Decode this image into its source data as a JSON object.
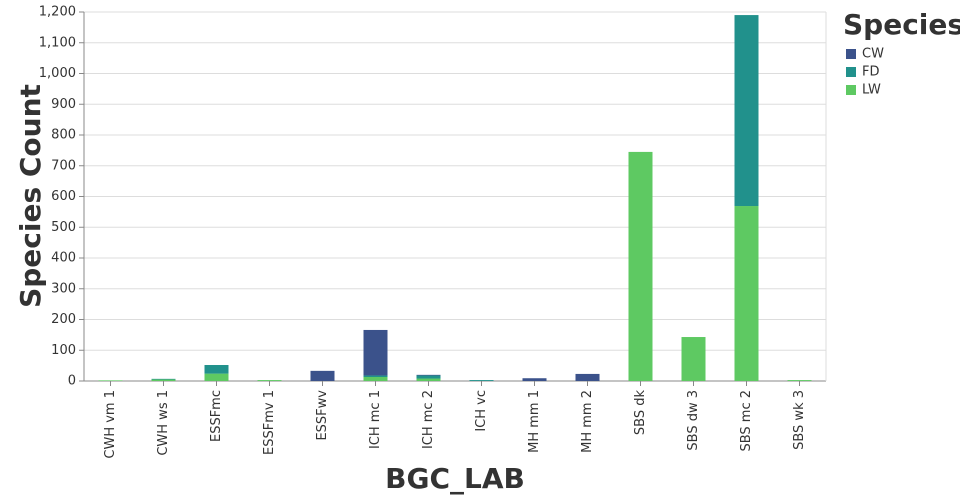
{
  "chart_data": {
    "type": "stacked-bar",
    "x_label": "BGC_LAB",
    "y_label": "Species Count",
    "legend_title": "Species",
    "categories": [
      "CWH vm 1",
      "CWH ws 1",
      "ESSFmc",
      "ESSFmv 1",
      "ESSFwv",
      "ICH mc 1",
      "ICH mc 2",
      "ICH vc",
      "MH mm 1",
      "MH mm 2",
      "SBS dk",
      "SBS dw 3",
      "SBS mc 2",
      "SBS wk 3"
    ],
    "series": [
      {
        "name": "CW",
        "color": "#3b528b",
        "values": [
          0,
          0,
          0,
          0,
          33,
          148,
          2,
          0,
          9,
          23,
          0,
          0,
          0,
          0
        ]
      },
      {
        "name": "FD",
        "color": "#21918c",
        "values": [
          0,
          2,
          28,
          0,
          0,
          5,
          10,
          3,
          0,
          0,
          0,
          0,
          621,
          0
        ]
      },
      {
        "name": "LW",
        "color": "#5ec962",
        "values": [
          2,
          5,
          24,
          3,
          0,
          13,
          8,
          0,
          0,
          0,
          745,
          143,
          569,
          3
        ]
      }
    ],
    "ylim": [
      0,
      1200
    ],
    "yticks": [
      0,
      100,
      200,
      300,
      400,
      500,
      600,
      700,
      800,
      900,
      {
        "value": 1000,
        "label": "1,000"
      },
      {
        "value": 1100,
        "label": "1,100"
      },
      {
        "value": 1200,
        "label": "1,200"
      }
    ],
    "grid": true
  }
}
